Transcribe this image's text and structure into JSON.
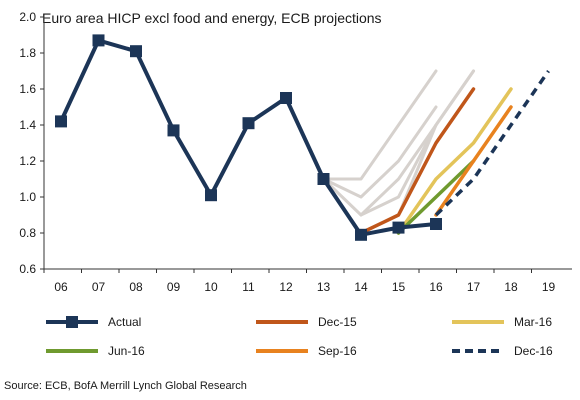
{
  "chart_data": {
    "type": "line",
    "title": "Euro area HICP excl food and energy, ECB projections",
    "source": "Source:  ECB, BofA Merrill Lynch Global Research",
    "x_ticks": [
      "06",
      "07",
      "08",
      "09",
      "10",
      "11",
      "12",
      "13",
      "14",
      "15",
      "16",
      "17",
      "18",
      "19"
    ],
    "y_ticks": [
      "0.6",
      "0.8",
      "1.0",
      "1.2",
      "1.4",
      "1.6",
      "1.8",
      "2.0"
    ],
    "ylim": [
      0.6,
      2.0
    ],
    "grid": false,
    "colors": {
      "actual": "#1c3557",
      "dec15": "#c0561a",
      "mar16": "#e3c45a",
      "jun16": "#6f9a2f",
      "sep16": "#e8821f",
      "dec16": "#1c3557",
      "past": "#d6d1cd"
    },
    "series": [
      {
        "name": "Actual",
        "key": "actual",
        "style": "solid-marker",
        "x": [
          2006,
          2007,
          2008,
          2009,
          2010,
          2011,
          2012,
          2013,
          2014,
          2015,
          2016
        ],
        "y": [
          1.42,
          1.87,
          1.81,
          1.37,
          1.01,
          1.41,
          1.55,
          1.1,
          0.79,
          0.83,
          0.85
        ]
      },
      {
        "name": "Dec-15",
        "key": "dec15",
        "style": "solid",
        "x": [
          2014,
          2015,
          2016,
          2017
        ],
        "y": [
          0.8,
          0.9,
          1.3,
          1.6
        ]
      },
      {
        "name": "Mar-16",
        "key": "mar16",
        "style": "solid",
        "x": [
          2015,
          2016,
          2017,
          2018
        ],
        "y": [
          0.8,
          1.1,
          1.3,
          1.6
        ]
      },
      {
        "name": "Jun-16",
        "key": "jun16",
        "style": "solid",
        "x": [
          2015,
          2016,
          2017
        ],
        "y": [
          0.8,
          1.0,
          1.2
        ]
      },
      {
        "name": "Sep-16",
        "key": "sep16",
        "style": "solid",
        "x": [
          2016,
          2017,
          2018
        ],
        "y": [
          0.9,
          1.2,
          1.5
        ]
      },
      {
        "name": "Dec-16",
        "key": "dec16",
        "style": "dashed",
        "x": [
          2016,
          2017,
          2018,
          2019
        ],
        "y": [
          0.9,
          1.1,
          1.4,
          1.7
        ]
      }
    ],
    "past_projections": [
      {
        "x": [
          2013,
          2014,
          2015,
          2016
        ],
        "y": [
          1.1,
          1.1,
          1.4,
          1.7
        ]
      },
      {
        "x": [
          2013,
          2014,
          2015,
          2016
        ],
        "y": [
          1.1,
          1.0,
          1.2,
          1.5
        ]
      },
      {
        "x": [
          2013,
          2014,
          2015,
          2016
        ],
        "y": [
          1.1,
          0.9,
          1.1,
          1.4
        ]
      },
      {
        "x": [
          2014,
          2015,
          2016,
          2017
        ],
        "y": [
          0.9,
          1.0,
          1.4,
          1.7
        ]
      },
      {
        "x": [
          2014,
          2015,
          2016,
          2017
        ],
        "y": [
          0.8,
          0.9,
          1.4,
          1.7
        ]
      },
      {
        "x": [
          2014,
          2015,
          2016,
          2017
        ],
        "y": [
          0.8,
          0.9,
          1.3,
          1.6
        ]
      }
    ],
    "legend": {
      "placement": "bottom",
      "rows": [
        [
          "actual",
          "dec15",
          "mar16"
        ],
        [
          "jun16",
          "sep16",
          "dec16"
        ]
      ],
      "labels": {
        "actual": "Actual",
        "dec15": "Dec-15",
        "mar16": "Mar-16",
        "jun16": "Jun-16",
        "sep16": "Sep-16",
        "dec16": "Dec-16"
      }
    }
  }
}
